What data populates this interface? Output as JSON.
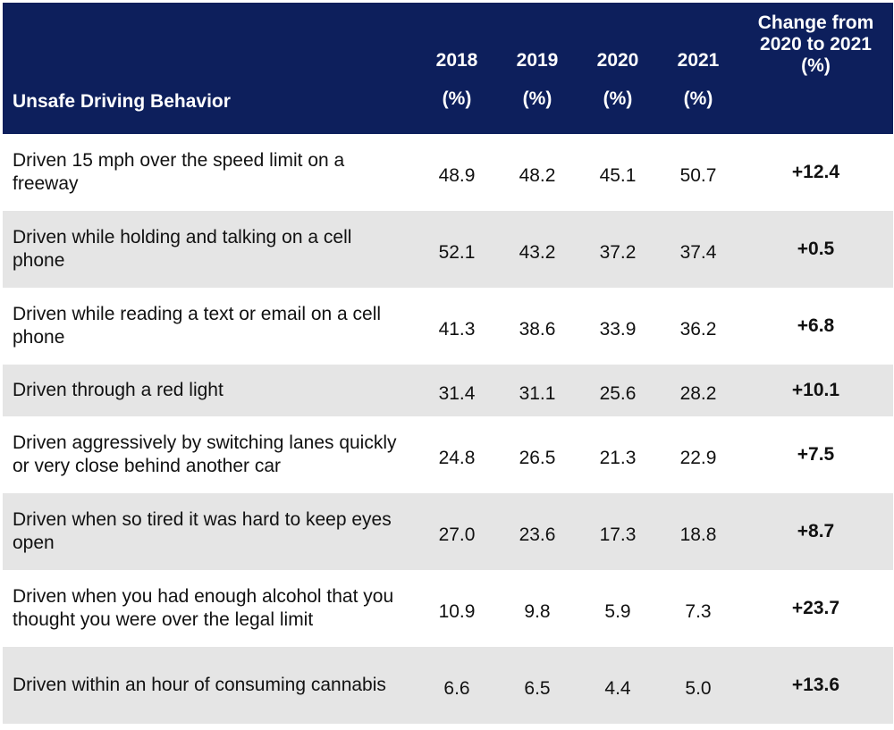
{
  "headers": {
    "behavior": "Unsafe Driving Behavior",
    "years": [
      {
        "year": "2018",
        "unit": "(%)"
      },
      {
        "year": "2019",
        "unit": "(%)"
      },
      {
        "year": "2020",
        "unit": "(%)"
      },
      {
        "year": "2021",
        "unit": "(%)"
      }
    ],
    "change": [
      "Change from",
      "2020 to 2021",
      "(%)"
    ]
  },
  "rows": [
    {
      "behavior": "Driven 15 mph over the speed limit on a freeway",
      "v2018": "48.9",
      "v2019": "48.2",
      "v2020": "45.1",
      "v2021": "50.7",
      "change": "+12.4"
    },
    {
      "behavior": "Driven while holding and talking on a cell phone",
      "v2018": "52.1",
      "v2019": "43.2",
      "v2020": "37.2",
      "v2021": "37.4",
      "change": "+0.5"
    },
    {
      "behavior": "Driven while reading a text or email on a cell phone",
      "v2018": "41.3",
      "v2019": "38.6",
      "v2020": "33.9",
      "v2021": "36.2",
      "change": "+6.8"
    },
    {
      "behavior": "Driven through a red light",
      "v2018": "31.4",
      "v2019": "31.1",
      "v2020": "25.6",
      "v2021": "28.2",
      "change": "+10.1"
    },
    {
      "behavior": "Driven aggressively by switching lanes quickly or very close behind another car",
      "v2018": "24.8",
      "v2019": "26.5",
      "v2020": "21.3",
      "v2021": "22.9",
      "change": "+7.5"
    },
    {
      "behavior": "Driven when so tired it was hard to keep eyes open",
      "v2018": "27.0",
      "v2019": "23.6",
      "v2020": "17.3",
      "v2021": "18.8",
      "change": "+8.7"
    },
    {
      "behavior": "Driven when you had enough alcohol that you thought you were over the legal limit",
      "v2018": "10.9",
      "v2019": "9.8",
      "v2020": "5.9",
      "v2021": "7.3",
      "change": "+23.7"
    },
    {
      "behavior": "Driven within an hour of consuming cannabis",
      "v2018": "6.6",
      "v2019": "6.5",
      "v2020": "4.4",
      "v2021": "5.0",
      "change": "+13.6"
    }
  ],
  "colors": {
    "header_bg": "#0d1f5c",
    "header_text": "#ffffff",
    "row_alt_bg": "#e5e5e5"
  }
}
